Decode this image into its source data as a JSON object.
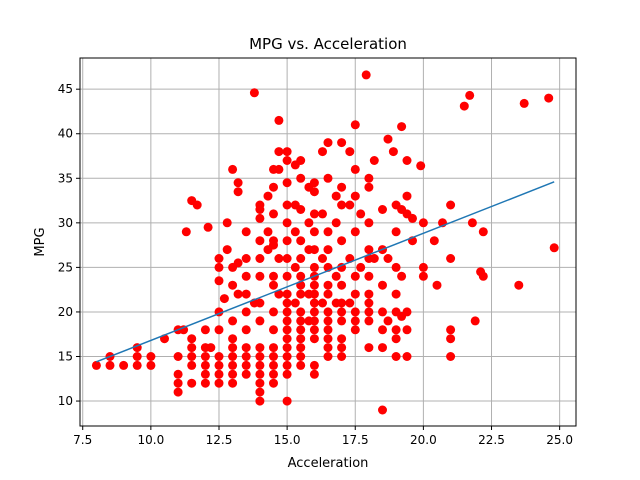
{
  "chart_data": {
    "type": "scatter",
    "title": "MPG vs. Acceleration",
    "xlabel": "Acceleration",
    "ylabel": "MPG",
    "xlim": [
      7.4,
      25.6
    ],
    "ylim": [
      7.2,
      48.5
    ],
    "xticks": [
      7.5,
      10.0,
      12.5,
      15.0,
      17.5,
      20.0,
      22.5,
      25.0
    ],
    "xtick_labels": [
      "7.5",
      "10.0",
      "12.5",
      "15.0",
      "17.5",
      "20.0",
      "22.5",
      "25.0"
    ],
    "yticks": [
      10,
      15,
      20,
      25,
      30,
      35,
      40,
      45
    ],
    "ytick_labels": [
      "10",
      "15",
      "20",
      "25",
      "30",
      "35",
      "40",
      "45"
    ],
    "grid": true,
    "colors": {
      "points": "#ff0000",
      "trend": "#1f77b4",
      "grid": "#b0b0b0"
    },
    "series": [
      {
        "kind": "points",
        "points": [
          [
            8.0,
            14
          ],
          [
            8.5,
            15
          ],
          [
            8.5,
            14
          ],
          [
            9.0,
            14
          ],
          [
            9.5,
            16
          ],
          [
            9.5,
            15
          ],
          [
            9.5,
            14
          ],
          [
            10.0,
            15
          ],
          [
            10.0,
            14
          ],
          [
            10.5,
            17
          ],
          [
            11.0,
            18
          ],
          [
            11.0,
            15
          ],
          [
            11.0,
            13
          ],
          [
            11.0,
            12
          ],
          [
            11.0,
            11
          ],
          [
            11.2,
            18
          ],
          [
            11.3,
            29
          ],
          [
            11.5,
            32.5
          ],
          [
            11.5,
            17
          ],
          [
            11.5,
            16
          ],
          [
            11.5,
            15
          ],
          [
            11.5,
            14
          ],
          [
            11.5,
            12
          ],
          [
            11.7,
            32
          ],
          [
            12.0,
            18
          ],
          [
            12.0,
            16
          ],
          [
            12.0,
            15
          ],
          [
            12.0,
            14
          ],
          [
            12.0,
            13
          ],
          [
            12.0,
            12
          ],
          [
            12.1,
            29.5
          ],
          [
            12.2,
            16
          ],
          [
            12.5,
            26
          ],
          [
            12.5,
            25
          ],
          [
            12.5,
            23.5
          ],
          [
            12.5,
            20
          ],
          [
            12.5,
            18
          ],
          [
            12.5,
            15
          ],
          [
            12.5,
            14
          ],
          [
            12.5,
            13
          ],
          [
            12.5,
            12
          ],
          [
            12.7,
            21.5
          ],
          [
            12.8,
            30
          ],
          [
            12.8,
            27
          ],
          [
            13.0,
            36
          ],
          [
            13.0,
            25
          ],
          [
            13.0,
            23
          ],
          [
            13.0,
            19
          ],
          [
            13.0,
            17
          ],
          [
            13.0,
            16
          ],
          [
            13.0,
            15
          ],
          [
            13.0,
            14
          ],
          [
            13.0,
            13
          ],
          [
            13.0,
            12
          ],
          [
            13.2,
            34.5
          ],
          [
            13.2,
            33.5
          ],
          [
            13.2,
            25.5
          ],
          [
            13.2,
            22
          ],
          [
            13.5,
            29
          ],
          [
            13.5,
            26
          ],
          [
            13.5,
            24
          ],
          [
            13.5,
            22
          ],
          [
            13.5,
            20
          ],
          [
            13.5,
            18
          ],
          [
            13.5,
            16
          ],
          [
            13.5,
            15
          ],
          [
            13.5,
            14
          ],
          [
            13.5,
            13
          ],
          [
            13.8,
            44.6
          ],
          [
            13.8,
            21
          ],
          [
            14.0,
            32
          ],
          [
            14.0,
            31.5
          ],
          [
            14.0,
            30.5
          ],
          [
            14.0,
            28
          ],
          [
            14.0,
            26
          ],
          [
            14.0,
            24
          ],
          [
            14.0,
            21
          ],
          [
            14.0,
            19
          ],
          [
            14.0,
            16
          ],
          [
            14.0,
            15
          ],
          [
            14.0,
            14
          ],
          [
            14.0,
            13
          ],
          [
            14.0,
            12
          ],
          [
            14.0,
            11
          ],
          [
            14.0,
            10
          ],
          [
            14.3,
            33
          ],
          [
            14.3,
            29
          ],
          [
            14.3,
            27
          ],
          [
            14.5,
            36
          ],
          [
            14.5,
            34
          ],
          [
            14.5,
            31
          ],
          [
            14.5,
            28
          ],
          [
            14.5,
            27.5
          ],
          [
            14.5,
            24
          ],
          [
            14.5,
            23
          ],
          [
            14.5,
            20
          ],
          [
            14.5,
            18
          ],
          [
            14.5,
            16
          ],
          [
            14.5,
            15
          ],
          [
            14.5,
            14
          ],
          [
            14.5,
            13
          ],
          [
            14.5,
            12
          ],
          [
            14.7,
            41.5
          ],
          [
            14.7,
            38
          ],
          [
            14.7,
            36
          ],
          [
            14.7,
            26
          ],
          [
            14.7,
            22
          ],
          [
            15.0,
            38
          ],
          [
            15.0,
            37
          ],
          [
            15.0,
            34.5
          ],
          [
            15.0,
            32
          ],
          [
            15.0,
            30
          ],
          [
            15.0,
            28
          ],
          [
            15.0,
            26
          ],
          [
            15.0,
            24
          ],
          [
            15.0,
            22
          ],
          [
            15.0,
            21
          ],
          [
            15.0,
            20
          ],
          [
            15.0,
            19
          ],
          [
            15.0,
            18
          ],
          [
            15.0,
            17
          ],
          [
            15.0,
            16
          ],
          [
            15.0,
            15
          ],
          [
            15.0,
            14
          ],
          [
            15.0,
            13
          ],
          [
            15.0,
            10
          ],
          [
            15.3,
            36.5
          ],
          [
            15.3,
            32
          ],
          [
            15.3,
            29
          ],
          [
            15.3,
            25
          ],
          [
            15.3,
            21
          ],
          [
            15.5,
            37
          ],
          [
            15.5,
            35
          ],
          [
            15.5,
            31.5
          ],
          [
            15.5,
            28
          ],
          [
            15.5,
            26
          ],
          [
            15.5,
            24
          ],
          [
            15.5,
            23
          ],
          [
            15.5,
            22
          ],
          [
            15.5,
            20
          ],
          [
            15.5,
            19
          ],
          [
            15.5,
            18
          ],
          [
            15.5,
            17
          ],
          [
            15.5,
            16
          ],
          [
            15.5,
            15
          ],
          [
            15.5,
            14
          ],
          [
            15.8,
            34
          ],
          [
            15.8,
            30
          ],
          [
            15.8,
            27
          ],
          [
            15.8,
            22
          ],
          [
            15.8,
            19
          ],
          [
            16.0,
            34.5
          ],
          [
            16.0,
            33.5
          ],
          [
            16.0,
            31
          ],
          [
            16.0,
            29
          ],
          [
            16.0,
            27
          ],
          [
            16.0,
            25
          ],
          [
            16.0,
            24
          ],
          [
            16.0,
            23
          ],
          [
            16.0,
            22
          ],
          [
            16.0,
            21
          ],
          [
            16.0,
            20
          ],
          [
            16.0,
            19
          ],
          [
            16.0,
            18
          ],
          [
            16.0,
            17
          ],
          [
            16.0,
            14
          ],
          [
            16.0,
            13
          ],
          [
            16.3,
            38
          ],
          [
            16.3,
            31
          ],
          [
            16.3,
            26
          ],
          [
            16.3,
            21
          ],
          [
            16.5,
            39
          ],
          [
            16.5,
            35
          ],
          [
            16.5,
            29
          ],
          [
            16.5,
            27
          ],
          [
            16.5,
            25
          ],
          [
            16.5,
            23
          ],
          [
            16.5,
            22
          ],
          [
            16.5,
            20
          ],
          [
            16.5,
            19
          ],
          [
            16.5,
            18
          ],
          [
            16.5,
            17
          ],
          [
            16.5,
            16
          ],
          [
            16.5,
            15
          ],
          [
            16.8,
            33
          ],
          [
            16.8,
            30
          ],
          [
            16.8,
            24
          ],
          [
            16.8,
            21
          ],
          [
            17.0,
            39
          ],
          [
            17.0,
            34
          ],
          [
            17.0,
            32
          ],
          [
            17.0,
            28
          ],
          [
            17.0,
            25
          ],
          [
            17.0,
            23
          ],
          [
            17.0,
            21
          ],
          [
            17.0,
            20
          ],
          [
            17.0,
            19
          ],
          [
            17.0,
            17
          ],
          [
            17.0,
            16
          ],
          [
            17.0,
            15
          ],
          [
            17.3,
            38
          ],
          [
            17.3,
            32
          ],
          [
            17.3,
            26
          ],
          [
            17.3,
            21
          ],
          [
            17.5,
            41
          ],
          [
            17.5,
            36
          ],
          [
            17.5,
            33
          ],
          [
            17.5,
            29
          ],
          [
            17.5,
            24
          ],
          [
            17.5,
            22
          ],
          [
            17.5,
            20
          ],
          [
            17.5,
            19
          ],
          [
            17.5,
            18
          ],
          [
            17.7,
            31
          ],
          [
            17.7,
            25
          ],
          [
            17.9,
            46.6
          ],
          [
            18.0,
            35
          ],
          [
            18.0,
            34
          ],
          [
            18.0,
            30
          ],
          [
            18.0,
            27
          ],
          [
            18.0,
            26
          ],
          [
            18.0,
            24
          ],
          [
            18.0,
            22
          ],
          [
            18.0,
            21
          ],
          [
            18.0,
            20
          ],
          [
            18.0,
            19
          ],
          [
            18.0,
            16
          ],
          [
            18.2,
            37
          ],
          [
            18.2,
            26
          ],
          [
            18.5,
            31.5
          ],
          [
            18.5,
            27
          ],
          [
            18.5,
            23
          ],
          [
            18.5,
            20
          ],
          [
            18.5,
            18
          ],
          [
            18.5,
            16
          ],
          [
            18.5,
            9
          ],
          [
            18.7,
            39.4
          ],
          [
            18.7,
            26
          ],
          [
            18.7,
            19
          ],
          [
            18.9,
            38
          ],
          [
            19.0,
            32
          ],
          [
            19.0,
            29
          ],
          [
            19.0,
            25
          ],
          [
            19.0,
            22
          ],
          [
            19.0,
            20
          ],
          [
            19.0,
            18
          ],
          [
            19.0,
            17
          ],
          [
            19.0,
            15
          ],
          [
            19.2,
            40.8
          ],
          [
            19.2,
            31.5
          ],
          [
            19.2,
            24
          ],
          [
            19.2,
            19.5
          ],
          [
            19.4,
            37
          ],
          [
            19.4,
            33
          ],
          [
            19.4,
            31
          ],
          [
            19.4,
            20
          ],
          [
            19.4,
            18
          ],
          [
            19.4,
            15
          ],
          [
            19.6,
            30.5
          ],
          [
            19.6,
            28
          ],
          [
            19.9,
            36.4
          ],
          [
            20.0,
            30
          ],
          [
            20.0,
            25
          ],
          [
            20.0,
            24
          ],
          [
            20.4,
            28
          ],
          [
            20.5,
            23
          ],
          [
            20.7,
            30
          ],
          [
            21.0,
            32
          ],
          [
            21.0,
            26
          ],
          [
            21.0,
            18
          ],
          [
            21.0,
            17
          ],
          [
            21.0,
            15
          ],
          [
            21.5,
            43.1
          ],
          [
            21.7,
            44.3
          ],
          [
            21.8,
            30
          ],
          [
            21.9,
            19
          ],
          [
            22.1,
            24.5
          ],
          [
            22.2,
            29
          ],
          [
            22.2,
            24
          ],
          [
            23.5,
            23
          ],
          [
            23.7,
            43.4
          ],
          [
            24.6,
            44
          ],
          [
            24.8,
            27.2
          ]
        ]
      },
      {
        "kind": "trend",
        "x": [
          8.0,
          24.8
        ],
        "y": [
          14.4,
          34.6
        ]
      }
    ]
  }
}
